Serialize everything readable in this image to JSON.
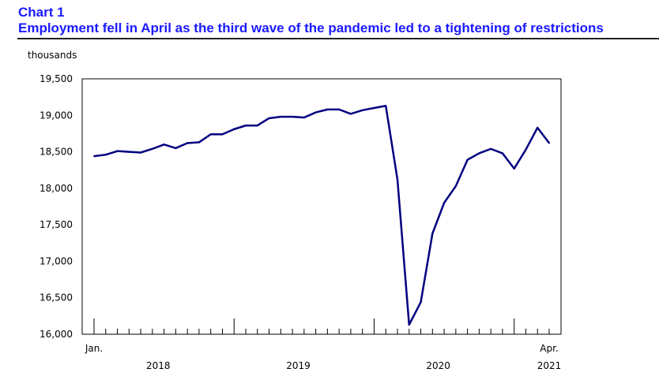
{
  "header": {
    "chart_number": "Chart 1",
    "title": "Employment fell in April as the third wave of the pandemic led to a tightening of restrictions"
  },
  "chart_data": {
    "type": "line",
    "title": "Employment fell in April as the third wave of the pandemic led to a tightening of restrictions",
    "ylabel": "thousands",
    "xlabel": "",
    "ylim": [
      16000,
      19500
    ],
    "yticks": [
      16000,
      16500,
      17000,
      17500,
      18000,
      18500,
      19000,
      19500
    ],
    "ytick_labels": [
      "16,000",
      "16,500",
      "17,000",
      "17,500",
      "18,000",
      "18,500",
      "19,000",
      "19,500"
    ],
    "x_start_label": "Jan.",
    "x_end_label": "Apr.",
    "years": [
      "2018",
      "2019",
      "2020",
      "2021"
    ],
    "line_color": "#000080",
    "series": [
      {
        "name": "Employment",
        "x": [
          "2018-01",
          "2018-02",
          "2018-03",
          "2018-04",
          "2018-05",
          "2018-06",
          "2018-07",
          "2018-08",
          "2018-09",
          "2018-10",
          "2018-11",
          "2018-12",
          "2019-01",
          "2019-02",
          "2019-03",
          "2019-04",
          "2019-05",
          "2019-06",
          "2019-07",
          "2019-08",
          "2019-09",
          "2019-10",
          "2019-11",
          "2019-12",
          "2020-01",
          "2020-02",
          "2020-03",
          "2020-04",
          "2020-05",
          "2020-06",
          "2020-07",
          "2020-08",
          "2020-09",
          "2020-10",
          "2020-11",
          "2020-12",
          "2021-01",
          "2021-02",
          "2021-03",
          "2021-04"
        ],
        "values": [
          18440,
          18460,
          18510,
          18500,
          18490,
          18540,
          18600,
          18550,
          18620,
          18630,
          18740,
          18740,
          18810,
          18860,
          18860,
          18960,
          18980,
          18980,
          18970,
          19040,
          19080,
          19080,
          19020,
          19070,
          19100,
          19130,
          18120,
          16130,
          16440,
          17380,
          17800,
          18030,
          18390,
          18480,
          18540,
          18480,
          18270,
          18530,
          18830,
          18620
        ]
      }
    ]
  }
}
